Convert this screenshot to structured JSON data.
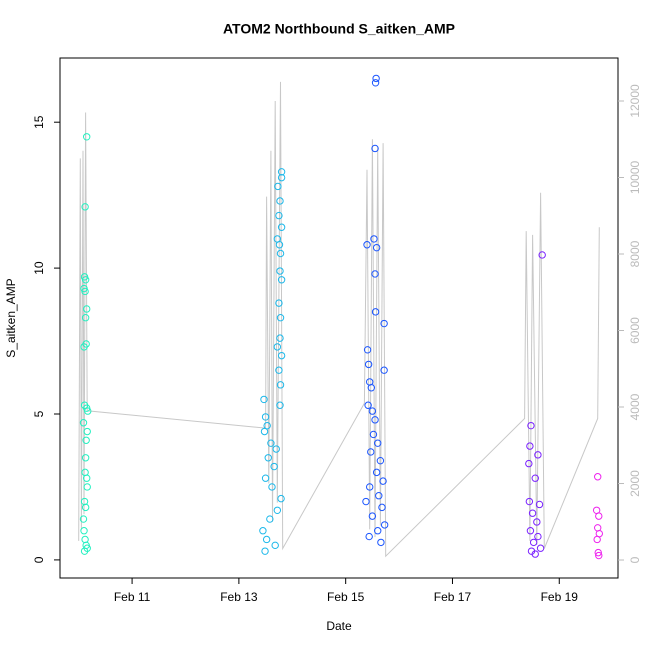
{
  "chart_data": {
    "type": "scatter",
    "title": "ATOM2 Northbound S_aitken_AMP",
    "x_label": "Date",
    "y_label": "S_aitken_AMP",
    "xlim": [
      9.65,
      20.1
    ],
    "xticks": [
      {
        "value": 11,
        "label": "Feb 11"
      },
      {
        "value": 13,
        "label": "Feb 13"
      },
      {
        "value": 15,
        "label": "Feb 15"
      },
      {
        "value": 17,
        "label": "Feb 17"
      },
      {
        "value": 19,
        "label": "Feb 19"
      }
    ],
    "ylim": [
      -0.62,
      17.2
    ],
    "yticks": [
      0,
      5,
      10,
      15
    ],
    "y2lim": [
      -470,
      13124
    ],
    "y2ticks": [
      0,
      2000,
      4000,
      6000,
      8000,
      10000,
      12000
    ],
    "y2_color": "#bbbbbb",
    "series": [
      {
        "color": "#22f0c0",
        "x": [
          10.15,
          10.12,
          10.11,
          10.13,
          10.1,
          10.12,
          10.15,
          10.13,
          10.14,
          10.1,
          10.11,
          10.15,
          10.17,
          10.09,
          10.16,
          10.14,
          10.13,
          10.12,
          10.15,
          10.16,
          10.11,
          10.13,
          10.09,
          10.1,
          10.12,
          10.14,
          10.16,
          10.11
        ],
        "values": [
          14.5,
          12.1,
          9.7,
          9.6,
          9.3,
          9.2,
          8.6,
          8.3,
          7.4,
          7.3,
          5.3,
          5.2,
          5.1,
          4.7,
          4.4,
          4.1,
          3.5,
          3.0,
          2.8,
          2.5,
          2.0,
          1.8,
          1.4,
          1.0,
          0.7,
          0.5,
          0.4,
          0.3
        ]
      },
      {
        "color": "#1cb8ea",
        "x": [
          13.8,
          13.8,
          13.73,
          13.77,
          13.75,
          13.8,
          13.72,
          13.76,
          13.78,
          13.77,
          13.8,
          13.75,
          13.78,
          13.77,
          13.72,
          13.8,
          13.75,
          13.78,
          13.47,
          13.77,
          13.5,
          13.53,
          13.48,
          13.6,
          13.7,
          13.55,
          13.66,
          13.5,
          13.62,
          13.79,
          13.72,
          13.58,
          13.45,
          13.52,
          13.68,
          13.49
        ],
        "values": [
          13.3,
          13.1,
          12.8,
          12.3,
          11.8,
          11.4,
          11.0,
          10.8,
          10.5,
          9.9,
          9.6,
          8.8,
          8.3,
          7.6,
          7.3,
          7.0,
          6.5,
          6.0,
          5.5,
          5.3,
          4.9,
          4.6,
          4.4,
          4.0,
          3.8,
          3.5,
          3.2,
          2.8,
          2.5,
          2.1,
          1.7,
          1.4,
          1.0,
          0.7,
          0.5,
          0.3
        ]
      },
      {
        "color": "#1a55ff",
        "x": [
          15.57,
          15.56,
          15.55,
          15.53,
          15.4,
          15.58,
          15.55,
          15.56,
          15.72,
          15.41,
          15.43,
          15.72,
          15.45,
          15.48,
          15.42,
          15.5,
          15.55,
          15.52,
          15.6,
          15.47,
          15.65,
          15.58,
          15.7,
          15.45,
          15.62,
          15.38,
          15.68,
          15.5,
          15.73,
          15.6,
          15.44,
          15.66
        ],
        "values": [
          16.5,
          16.35,
          14.1,
          11.0,
          10.8,
          10.7,
          9.8,
          8.5,
          8.1,
          7.2,
          6.7,
          6.5,
          6.1,
          5.9,
          5.3,
          5.1,
          4.8,
          4.3,
          4.0,
          3.7,
          3.4,
          3.0,
          2.7,
          2.5,
          2.2,
          2.0,
          1.8,
          1.5,
          1.2,
          1.0,
          0.8,
          0.6
        ]
      },
      {
        "color": "#7a22ff",
        "x": [
          18.68,
          18.47,
          18.45,
          18.6,
          18.43,
          18.55,
          18.44,
          18.63,
          18.5,
          18.58,
          18.46,
          18.6,
          18.52,
          18.65,
          18.48,
          18.55
        ],
        "values": [
          10.45,
          4.6,
          3.9,
          3.6,
          3.3,
          2.8,
          2.0,
          1.9,
          1.6,
          1.3,
          1.0,
          0.8,
          0.6,
          0.4,
          0.3,
          0.2
        ]
      },
      {
        "color": "#ee22ee",
        "x": [
          19.72,
          19.7,
          19.74,
          19.72,
          19.75,
          19.71,
          19.73,
          19.74
        ],
        "values": [
          2.85,
          1.7,
          1.5,
          1.1,
          0.9,
          0.7,
          0.25,
          0.15
        ]
      }
    ],
    "line": {
      "color": "#c8c8c8",
      "axis": "y2",
      "x": [
        10.0,
        10.03,
        10.05,
        10.08,
        10.1,
        10.13,
        10.16,
        13.5,
        13.52,
        13.56,
        13.6,
        13.63,
        13.68,
        13.72,
        13.78,
        13.82,
        15.35,
        15.4,
        15.45,
        15.5,
        15.55,
        15.6,
        15.65,
        15.7,
        15.75,
        18.35,
        18.38,
        18.45,
        18.5,
        18.58,
        18.65,
        18.72,
        19.72,
        19.75
      ],
      "values": [
        500,
        10500,
        800,
        10700,
        1200,
        11700,
        3900,
        3450,
        9500,
        2000,
        10700,
        1000,
        12000,
        1500,
        12500,
        300,
        4100,
        10200,
        800,
        11000,
        600,
        10800,
        900,
        10900,
        100,
        3700,
        8600,
        500,
        8500,
        400,
        9600,
        300,
        3700,
        8700
      ]
    }
  }
}
